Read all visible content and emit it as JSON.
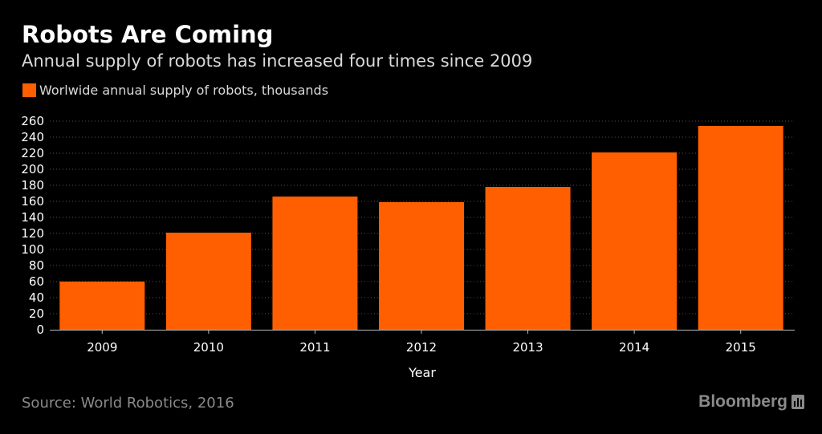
{
  "header": {
    "title": "Robots Are Coming",
    "subtitle": "Annual supply of robots has increased four times since 2009"
  },
  "legend": {
    "label": "Worlwide annual supply of robots, thousands"
  },
  "footer": {
    "source": "Source: World Robotics, 2016",
    "brand": "Bloomberg",
    "brand_icon": "bar-chart-icon"
  },
  "colors": {
    "background": "#000000",
    "bar": "#ff5f00",
    "gridline": "#555555",
    "axis": "#bbbbbb",
    "text": "#ffffff",
    "muted": "#8a8a8a"
  },
  "chart_data": {
    "type": "bar",
    "title": "Robots Are Coming",
    "subtitle": "Annual supply of robots has increased four times since 2009",
    "xlabel": "Year",
    "ylabel": "",
    "categories": [
      "2009",
      "2010",
      "2011",
      "2012",
      "2013",
      "2014",
      "2015"
    ],
    "series": [
      {
        "name": "Worlwide annual supply of robots, thousands",
        "values": [
          60,
          121,
          166,
          159,
          178,
          221,
          254
        ]
      }
    ],
    "ylim": [
      0,
      260
    ],
    "yticks": [
      0,
      20,
      40,
      60,
      80,
      100,
      120,
      140,
      160,
      180,
      200,
      220,
      240,
      260
    ],
    "grid": true,
    "legend_position": "top-left"
  }
}
